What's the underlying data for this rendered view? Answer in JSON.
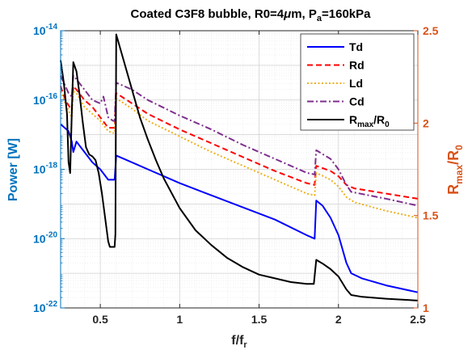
{
  "chart_data": {
    "type": "line",
    "title_parts": {
      "main": "Coated C3F8 bubble, R0=4",
      "mu": "μ",
      "mid": "m, P",
      "sub": "a",
      "tail": "=160kPa"
    },
    "xlabel": {
      "main": "f/f",
      "sub": "r"
    },
    "ylabel_left": "Power [W]",
    "ylabel_right": {
      "main": "R",
      "sub1": "max",
      "slash": "/R",
      "sub2": "0"
    },
    "xlim": [
      0.25,
      2.5
    ],
    "ylim_left_log10": [
      -22,
      -14
    ],
    "ylim_right": [
      1,
      2.5
    ],
    "yscale_left": "log",
    "grid": true,
    "legend_position": "top-right",
    "x_ticks": [
      {
        "v": 0.5,
        "label": "0.5"
      },
      {
        "v": 1,
        "label": "1"
      },
      {
        "v": 1.5,
        "label": "1.5"
      },
      {
        "v": 2,
        "label": "2"
      },
      {
        "v": 2.5,
        "label": "2.5"
      }
    ],
    "y_left_ticks": [
      {
        "e": -22,
        "base": "10",
        "exp": "-22"
      },
      {
        "e": -20,
        "base": "10",
        "exp": "-20"
      },
      {
        "e": -18,
        "base": "10",
        "exp": "-18"
      },
      {
        "e": -16,
        "base": "10",
        "exp": "-16"
      },
      {
        "e": -14,
        "base": "10",
        "exp": "-14"
      }
    ],
    "y_right_ticks": [
      {
        "v": 1,
        "label": "1"
      },
      {
        "v": 1.5,
        "label": "1.5"
      },
      {
        "v": 2,
        "label": "2"
      },
      {
        "v": 2.5,
        "label": "2.5"
      }
    ],
    "colors": {
      "left_axis": "#0072BD",
      "right_axis": "#D95319",
      "grid": "#cfcfcf"
    },
    "series": [
      {
        "name": "Td",
        "axis": "left",
        "color": "#0000FF",
        "dash": "solid",
        "points": [
          [
            0.25,
            -16.7
          ],
          [
            0.3,
            -16.9
          ],
          [
            0.32,
            -17.2
          ],
          [
            0.33,
            -17.5
          ],
          [
            0.35,
            -17.2
          ],
          [
            0.4,
            -17.5
          ],
          [
            0.45,
            -17.8
          ],
          [
            0.5,
            -18.0
          ],
          [
            0.55,
            -18.3
          ],
          [
            0.58,
            -18.3
          ],
          [
            0.59,
            -18.3
          ],
          [
            0.6,
            -17.6
          ],
          [
            0.7,
            -17.8
          ],
          [
            0.8,
            -18.0
          ],
          [
            1.0,
            -18.4
          ],
          [
            1.2,
            -18.75
          ],
          [
            1.4,
            -19.1
          ],
          [
            1.6,
            -19.45
          ],
          [
            1.8,
            -19.9
          ],
          [
            1.85,
            -20.0
          ],
          [
            1.86,
            -18.9
          ],
          [
            1.9,
            -19.05
          ],
          [
            1.95,
            -19.4
          ],
          [
            2.0,
            -19.9
          ],
          [
            2.05,
            -20.7
          ],
          [
            2.08,
            -21.0
          ],
          [
            2.15,
            -21.15
          ],
          [
            2.3,
            -21.35
          ],
          [
            2.5,
            -21.55
          ]
        ]
      },
      {
        "name": "Rd",
        "axis": "left",
        "color": "#FF0000",
        "dash": "dashed",
        "points": [
          [
            0.25,
            -15.6
          ],
          [
            0.28,
            -16.0
          ],
          [
            0.3,
            -16.15
          ],
          [
            0.32,
            -16.3
          ],
          [
            0.33,
            -15.6
          ],
          [
            0.35,
            -15.7
          ],
          [
            0.4,
            -16.0
          ],
          [
            0.45,
            -16.2
          ],
          [
            0.5,
            -16.5
          ],
          [
            0.55,
            -16.8
          ],
          [
            0.58,
            -16.8
          ],
          [
            0.59,
            -16.8
          ],
          [
            0.6,
            -15.8
          ],
          [
            0.7,
            -16.1
          ],
          [
            0.8,
            -16.4
          ],
          [
            1.0,
            -16.85
          ],
          [
            1.2,
            -17.25
          ],
          [
            1.4,
            -17.65
          ],
          [
            1.6,
            -18.05
          ],
          [
            1.8,
            -18.4
          ],
          [
            1.85,
            -18.45
          ],
          [
            1.86,
            -17.9
          ],
          [
            1.95,
            -18.05
          ],
          [
            2.0,
            -18.2
          ],
          [
            2.05,
            -18.45
          ],
          [
            2.1,
            -18.55
          ],
          [
            2.3,
            -18.7
          ],
          [
            2.5,
            -18.85
          ]
        ]
      },
      {
        "name": "Ld",
        "axis": "left",
        "color": "#EDB120",
        "dash": "dotted",
        "points": [
          [
            0.25,
            -15.75
          ],
          [
            0.28,
            -16.1
          ],
          [
            0.3,
            -16.3
          ],
          [
            0.32,
            -16.5
          ],
          [
            0.33,
            -15.75
          ],
          [
            0.35,
            -15.8
          ],
          [
            0.4,
            -16.2
          ],
          [
            0.45,
            -16.4
          ],
          [
            0.5,
            -16.6
          ],
          [
            0.55,
            -16.9
          ],
          [
            0.58,
            -16.95
          ],
          [
            0.59,
            -16.95
          ],
          [
            0.6,
            -15.95
          ],
          [
            0.7,
            -16.25
          ],
          [
            0.8,
            -16.6
          ],
          [
            1.0,
            -17.05
          ],
          [
            1.2,
            -17.5
          ],
          [
            1.4,
            -17.9
          ],
          [
            1.6,
            -18.3
          ],
          [
            1.8,
            -18.7
          ],
          [
            1.85,
            -18.75
          ],
          [
            1.86,
            -18.1
          ],
          [
            1.95,
            -18.3
          ],
          [
            2.0,
            -18.5
          ],
          [
            2.05,
            -18.8
          ],
          [
            2.1,
            -18.95
          ],
          [
            2.3,
            -19.2
          ],
          [
            2.5,
            -19.4
          ]
        ]
      },
      {
        "name": "Cd",
        "axis": "left",
        "color": "#7E2F8E",
        "dash": "dashdot",
        "points": [
          [
            0.25,
            -15.3
          ],
          [
            0.28,
            -15.6
          ],
          [
            0.3,
            -15.8
          ],
          [
            0.32,
            -15.9
          ],
          [
            0.33,
            -15.3
          ],
          [
            0.35,
            -15.4
          ],
          [
            0.4,
            -15.7
          ],
          [
            0.45,
            -16.0
          ],
          [
            0.5,
            -16.1
          ],
          [
            0.52,
            -15.9
          ],
          [
            0.55,
            -16.5
          ],
          [
            0.58,
            -16.6
          ],
          [
            0.59,
            -16.6
          ],
          [
            0.6,
            -15.5
          ],
          [
            0.7,
            -15.7
          ],
          [
            0.8,
            -16.0
          ],
          [
            1.0,
            -16.45
          ],
          [
            1.2,
            -16.85
          ],
          [
            1.4,
            -17.3
          ],
          [
            1.6,
            -17.7
          ],
          [
            1.8,
            -18.1
          ],
          [
            1.85,
            -18.15
          ],
          [
            1.86,
            -17.45
          ],
          [
            1.95,
            -17.7
          ],
          [
            2.0,
            -18.0
          ],
          [
            2.05,
            -18.45
          ],
          [
            2.08,
            -18.65
          ],
          [
            2.3,
            -18.85
          ],
          [
            2.5,
            -19.05
          ]
        ]
      },
      {
        "name": "R_max/R_0",
        "axis": "right",
        "color": "#000000",
        "dash": "solid",
        "points": [
          [
            0.25,
            2.34
          ],
          [
            0.27,
            2.22
          ],
          [
            0.29,
            2.05
          ],
          [
            0.3,
            1.79
          ],
          [
            0.31,
            1.73
          ],
          [
            0.32,
            2.05
          ],
          [
            0.33,
            2.33
          ],
          [
            0.35,
            2.28
          ],
          [
            0.37,
            2.15
          ],
          [
            0.39,
            2.0
          ],
          [
            0.41,
            1.87
          ],
          [
            0.43,
            1.83
          ],
          [
            0.45,
            1.82
          ],
          [
            0.47,
            1.8
          ],
          [
            0.49,
            1.73
          ],
          [
            0.51,
            1.62
          ],
          [
            0.53,
            1.49
          ],
          [
            0.55,
            1.36
          ],
          [
            0.56,
            1.33
          ],
          [
            0.59,
            1.33
          ],
          [
            0.595,
            1.4
          ],
          [
            0.6,
            2.48
          ],
          [
            0.65,
            2.33
          ],
          [
            0.7,
            2.18
          ],
          [
            0.75,
            2.03
          ],
          [
            0.8,
            1.91
          ],
          [
            0.85,
            1.8
          ],
          [
            0.9,
            1.7
          ],
          [
            1.0,
            1.54
          ],
          [
            1.1,
            1.42
          ],
          [
            1.2,
            1.34
          ],
          [
            1.3,
            1.27
          ],
          [
            1.4,
            1.22
          ],
          [
            1.5,
            1.18
          ],
          [
            1.6,
            1.16
          ],
          [
            1.7,
            1.14
          ],
          [
            1.8,
            1.13
          ],
          [
            1.845,
            1.13
          ],
          [
            1.86,
            1.26
          ],
          [
            1.9,
            1.24
          ],
          [
            1.95,
            1.21
          ],
          [
            2.0,
            1.17
          ],
          [
            2.05,
            1.1
          ],
          [
            2.08,
            1.07
          ],
          [
            2.15,
            1.06
          ],
          [
            2.3,
            1.05
          ],
          [
            2.5,
            1.04
          ]
        ]
      }
    ],
    "legend": [
      {
        "id": "td",
        "main": "Td",
        "sub1": "",
        "slash": "",
        "sub2": ""
      },
      {
        "id": "rd",
        "main": "Rd",
        "sub1": "",
        "slash": "",
        "sub2": ""
      },
      {
        "id": "ld",
        "main": "Ld",
        "sub1": "",
        "slash": "",
        "sub2": ""
      },
      {
        "id": "cd",
        "main": "Cd",
        "sub1": "",
        "slash": "",
        "sub2": ""
      },
      {
        "id": "rmax",
        "main": "R",
        "sub1": "max",
        "slash": "/R",
        "sub2": "0"
      }
    ]
  }
}
